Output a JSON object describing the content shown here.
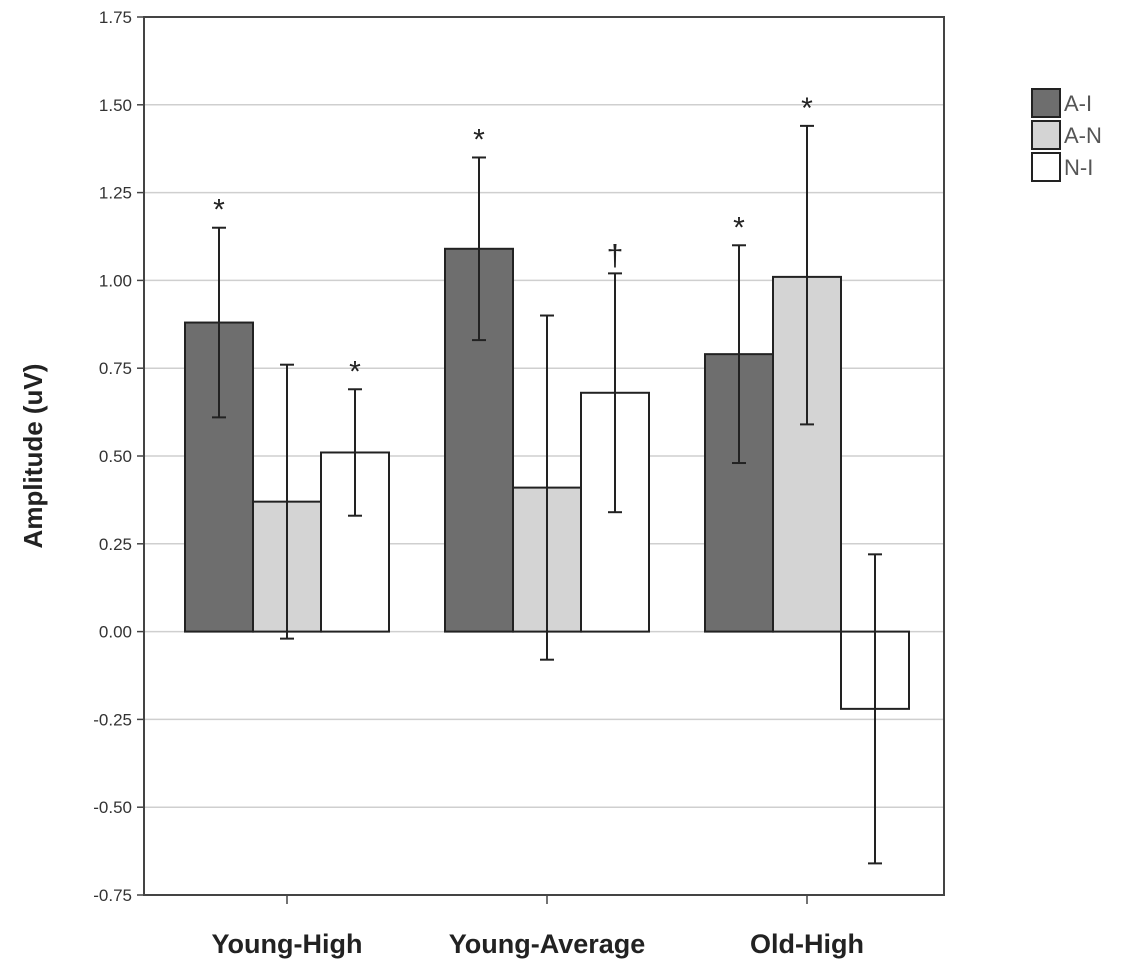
{
  "chart_data": {
    "type": "bar",
    "title": "",
    "xlabel": "",
    "ylabel": "Amplitude (uV)",
    "ylim": [
      -0.75,
      1.75
    ],
    "yticks": [
      "1.75",
      "1.50",
      "1.25",
      "1.00",
      "0.75",
      "0.50",
      "0.25",
      "0.00",
      "-0.25",
      "-0.50",
      "-0.75"
    ],
    "grid": true,
    "legend_position": "top-right",
    "categories": [
      "Young-High",
      "Young-Average",
      "Old-High"
    ],
    "series": [
      {
        "name": "A-I",
        "color": "#6e6e6e",
        "values": [
          0.88,
          1.09,
          0.79
        ],
        "error_low": [
          0.61,
          0.83,
          0.48
        ],
        "error_high": [
          1.15,
          1.35,
          1.1
        ],
        "significance": [
          "*",
          "*",
          "*"
        ]
      },
      {
        "name": "A-N",
        "color": "#d4d4d4",
        "values": [
          0.37,
          0.41,
          1.01
        ],
        "error_low": [
          -0.02,
          -0.08,
          0.59
        ],
        "error_high": [
          0.76,
          0.9,
          1.44
        ],
        "significance": [
          "",
          "",
          "*"
        ]
      },
      {
        "name": "N-I",
        "color": "#ffffff",
        "values": [
          0.51,
          0.68,
          -0.22
        ],
        "error_low": [
          0.33,
          0.34,
          -0.66
        ],
        "error_high": [
          0.69,
          1.02,
          0.22
        ],
        "significance": [
          "*",
          "†",
          ""
        ]
      }
    ]
  }
}
